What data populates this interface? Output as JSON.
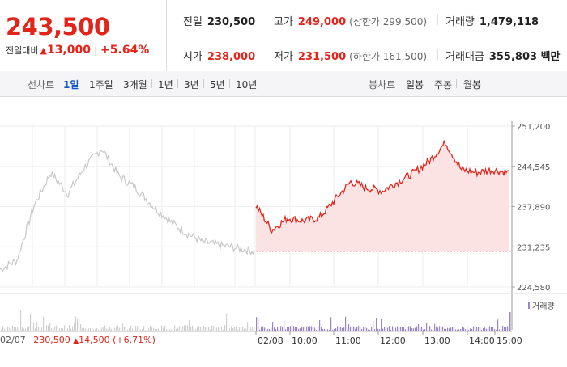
{
  "header": {
    "price": "243,500",
    "change_label": "전일대비",
    "change_value": "13,000",
    "change_pct": "+5.64%"
  },
  "stats": {
    "prev_close": {
      "label": "전일",
      "value": "230,500"
    },
    "high": {
      "label": "고가",
      "value": "249,000",
      "sub": "(상한가 299,500)"
    },
    "volume": {
      "label": "거래량",
      "value": "1,479,118"
    },
    "open": {
      "label": "시가",
      "value": "238,000"
    },
    "low": {
      "label": "저가",
      "value": "231,500",
      "sub": "(하한가 161,500)"
    },
    "amount": {
      "label": "거래대금",
      "value": "355,803 백만"
    }
  },
  "tabs": {
    "line_label": "선차트",
    "line_tabs": [
      "1일",
      "1주일",
      "3개월",
      "1년",
      "3년",
      "5년",
      "10년"
    ],
    "active": "1일",
    "candle_label": "봉차트",
    "candle_tabs": [
      "일봉",
      "주봉",
      "월봉"
    ]
  },
  "chart_data": {
    "type": "line",
    "y_ticks": [
      "251,200",
      "244,545",
      "237,890",
      "231,235",
      "224,580"
    ],
    "ylim": [
      224580,
      251200
    ],
    "x_ticks": [
      "02/07",
      "02/08",
      "10:00",
      "11:00",
      "12:00",
      "13:00",
      "14:00",
      "15:00"
    ],
    "reference": 230500,
    "series": [
      {
        "values_prev_day": [
          227500,
          229000,
          238000,
          243500,
          240000,
          244500,
          247500,
          243000,
          241000,
          238000,
          235500,
          233500,
          232000,
          231500,
          231000,
          230500
        ],
        "values_today": [
          238000,
          234000,
          236000,
          235500,
          236000,
          239000,
          242000,
          241000,
          240500,
          242000,
          243500,
          245500,
          248500,
          244000,
          243500,
          244000,
          243500
        ]
      }
    ],
    "volume_label": "거래량"
  },
  "footer": {
    "date": "02/07",
    "price": "230,500",
    "change": "14,500",
    "pct": "(+6.71%)"
  },
  "colors": {
    "up": "#e3241a",
    "active_tab": "#1a55c8",
    "prev_line": "#c8c8c8",
    "fill": "#fbe3e3"
  }
}
